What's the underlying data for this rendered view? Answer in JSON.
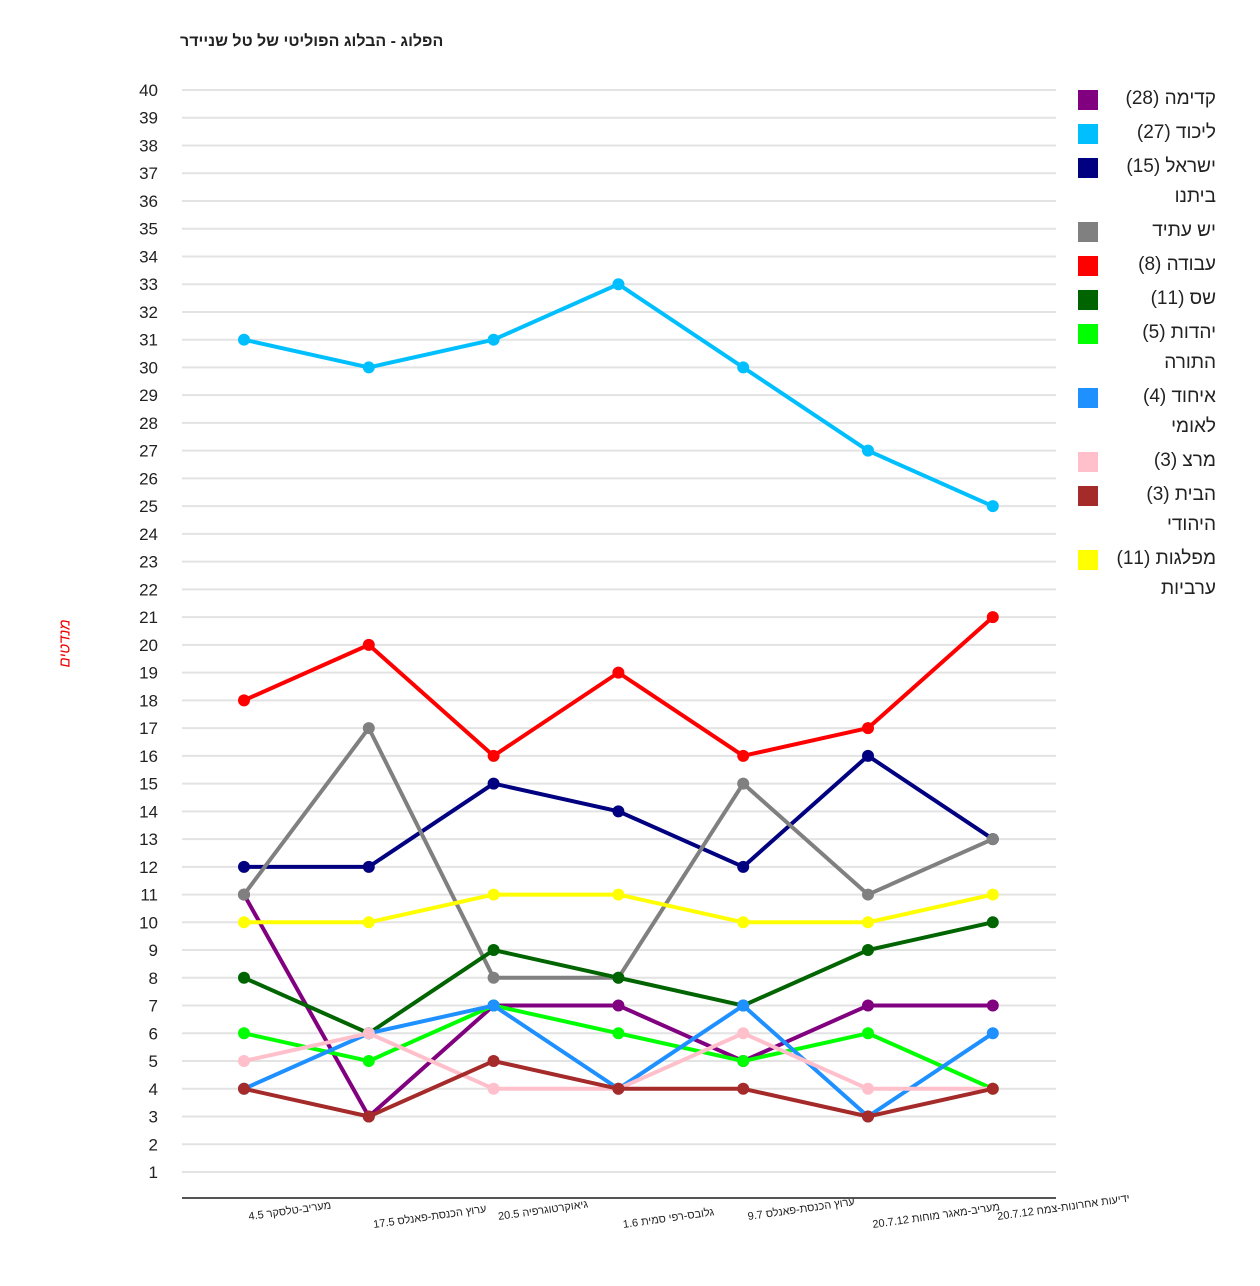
{
  "chart_data": {
    "type": "line",
    "title": "הפלוג - הבלוג הפוליטי של טל שניידר",
    "xlabel": "",
    "ylabel": "מנדטים",
    "ylim": [
      0,
      40
    ],
    "yticks": [
      1,
      2,
      3,
      4,
      5,
      6,
      7,
      8,
      9,
      10,
      11,
      12,
      13,
      14,
      15,
      16,
      17,
      18,
      19,
      20,
      21,
      22,
      23,
      24,
      25,
      26,
      27,
      28,
      29,
      30,
      31,
      32,
      33,
      34,
      35,
      36,
      37,
      38,
      39,
      40
    ],
    "grid": true,
    "legend_position": "right",
    "categories": [
      "מעריב-טלסקר 4.5",
      "ערוץ הכנסת-פאנלס 17.5",
      "גיאוקרטוגרפיה 20.5",
      "גלובס-רפי סמית 1.6",
      "ערוץ הכנסת-פאנלס 9.7",
      "מעריב-מאגר מוחות 20.7.12",
      "ידיעות אחרונות-צמח 20.7.12"
    ],
    "series": [
      {
        "name": "קדימה (28)",
        "color": "#800080",
        "values": [
          11,
          3,
          7,
          7,
          5,
          7,
          7
        ]
      },
      {
        "name": "ליכוד (27)",
        "color": "#00bfff",
        "values": [
          31,
          30,
          31,
          33,
          30,
          27,
          25
        ]
      },
      {
        "name": "ישראל (15) ביתנו",
        "color": "#000080",
        "values": [
          12,
          12,
          15,
          14,
          12,
          16,
          13
        ]
      },
      {
        "name": "יש עתיד",
        "color": "#808080",
        "values": [
          11,
          17,
          8,
          8,
          15,
          11,
          13
        ]
      },
      {
        "name": "עבודה (8)",
        "color": "#ff0000",
        "values": [
          18,
          20,
          16,
          19,
          16,
          17,
          21
        ]
      },
      {
        "name": "שס (11)",
        "color": "#006400",
        "values": [
          8,
          6,
          9,
          8,
          7,
          9,
          10
        ]
      },
      {
        "name": "יהדות (5) התורה",
        "color": "#00ff00",
        "values": [
          6,
          5,
          7,
          6,
          5,
          6,
          4
        ]
      },
      {
        "name": "איחוד (4) לאומי",
        "color": "#1e90ff",
        "values": [
          4,
          6,
          7,
          4,
          7,
          3,
          6
        ]
      },
      {
        "name": "מרצ (3)",
        "color": "#ffc0cb",
        "values": [
          5,
          6,
          4,
          4,
          6,
          4,
          4
        ]
      },
      {
        "name": "הבית (3) היהודי",
        "color": "#a52a2a",
        "values": [
          4,
          3,
          5,
          4,
          4,
          3,
          4
        ]
      },
      {
        "name": "מפלגות (11) ערביות",
        "color": "#ffff00",
        "values": [
          10,
          10,
          11,
          11,
          10,
          10,
          11
        ]
      }
    ]
  }
}
